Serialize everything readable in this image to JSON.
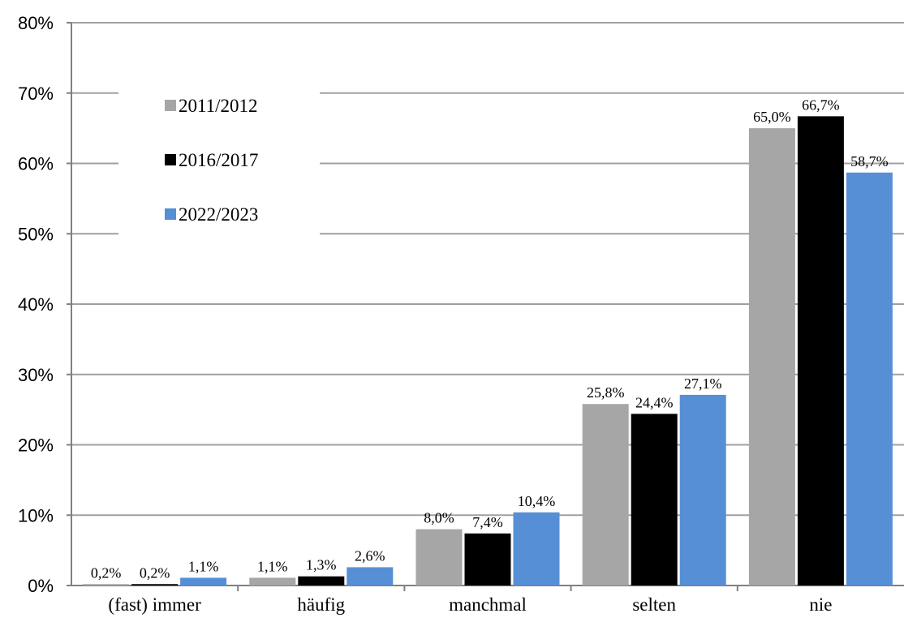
{
  "chart_data": {
    "type": "bar",
    "title": "",
    "xlabel": "",
    "ylabel": "",
    "categories": [
      "(fast) immer",
      "häufig",
      "manchmal",
      "selten",
      "nie"
    ],
    "series": [
      {
        "name": "2011/2012",
        "color": "#a6a6a6",
        "values": [
          0.2,
          1.1,
          8.0,
          25.8,
          65.0
        ],
        "labels": [
          "0,2%",
          "1,1%",
          "8,0%",
          "25,8%",
          "65,0%"
        ]
      },
      {
        "name": "2016/2017",
        "color": "#000000",
        "values": [
          0.2,
          1.3,
          7.4,
          24.4,
          66.7
        ],
        "labels": [
          "0,2%",
          "1,3%",
          "7,4%",
          "24,4%",
          "66,7%"
        ]
      },
      {
        "name": "2022/2023",
        "color": "#568fd6",
        "values": [
          1.1,
          2.6,
          10.4,
          27.1,
          58.7
        ],
        "labels": [
          "1,1%",
          "2,6%",
          "10,4%",
          "27,1%",
          "58,7%"
        ]
      }
    ],
    "ylim": [
      0,
      80
    ],
    "yticks": [
      "0%",
      "10%",
      "20%",
      "30%",
      "40%",
      "50%",
      "60%",
      "70%",
      "80%"
    ],
    "grid": true,
    "legend": "top-left"
  }
}
